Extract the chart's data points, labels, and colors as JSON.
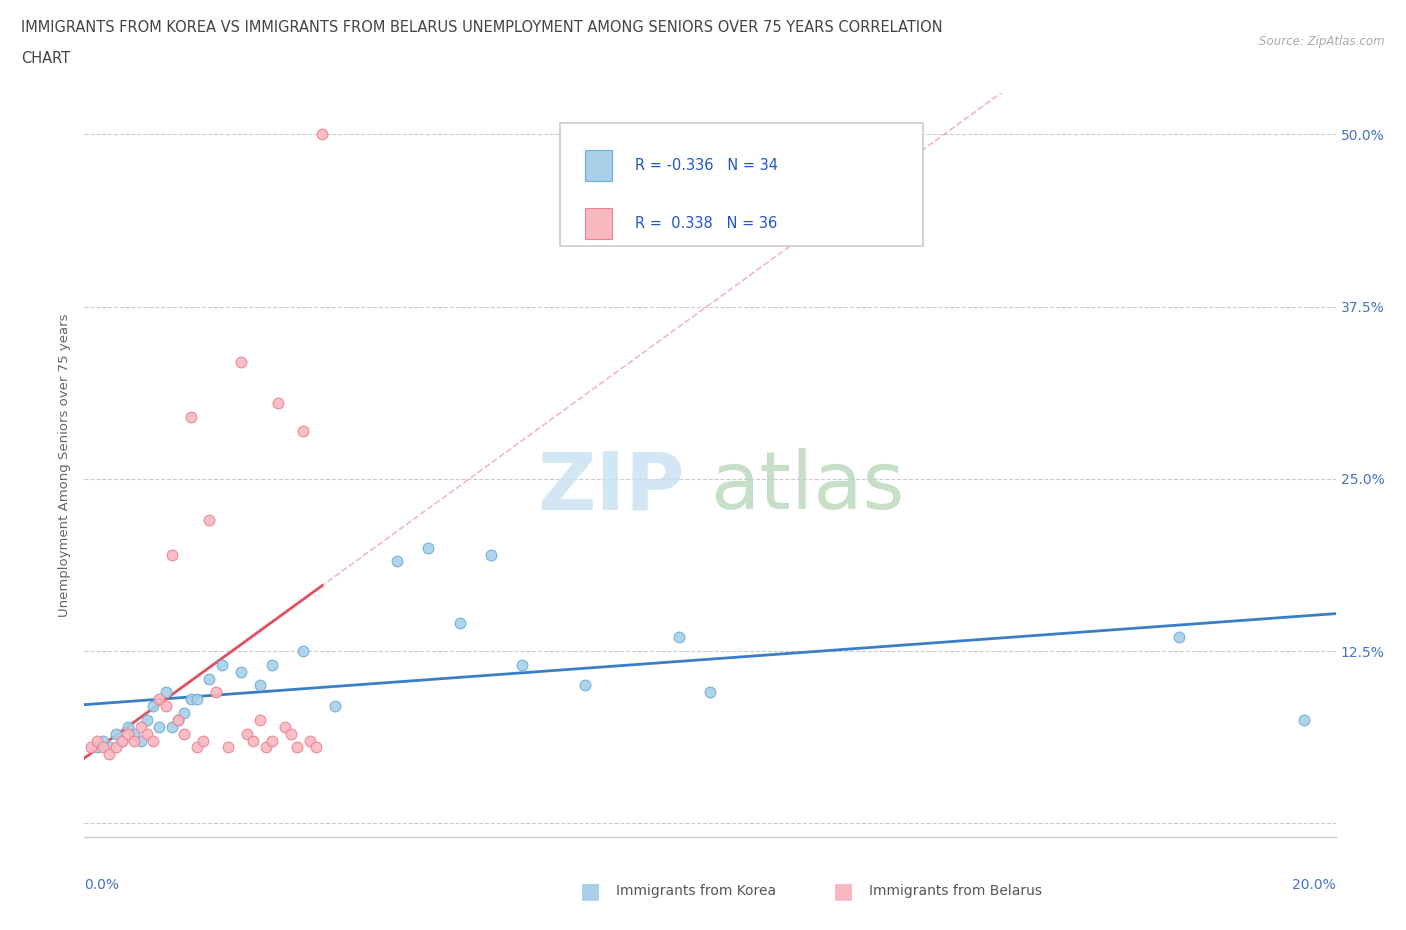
{
  "title_line1": "IMMIGRANTS FROM KOREA VS IMMIGRANTS FROM BELARUS UNEMPLOYMENT AMONG SENIORS OVER 75 YEARS CORRELATION",
  "title_line2": "CHART",
  "source": "Source: ZipAtlas.com",
  "ylabel": "Unemployment Among Seniors over 75 years",
  "yticks": [
    "",
    "12.5%",
    "25.0%",
    "37.5%",
    "50.0%"
  ],
  "ytick_vals": [
    0.0,
    12.5,
    25.0,
    37.5,
    50.0
  ],
  "xlim": [
    0.0,
    20.0
  ],
  "ylim": [
    -1.0,
    53.0
  ],
  "legend_korea_r": "-0.336",
  "legend_korea_n": "34",
  "legend_belarus_r": "0.338",
  "legend_belarus_n": "36",
  "korea_color": "#a8d0e8",
  "korea_edge_color": "#6aaed6",
  "korea_line_color": "#3a7ec8",
  "belarus_color": "#f9b8c0",
  "belarus_edge_color": "#f08090",
  "belarus_line_color": "#e05060",
  "watermark_zip_color": "#c8e0f0",
  "watermark_atlas_color": "#b8d8b8",
  "korea_scatter_x": [
    0.2,
    0.3,
    0.4,
    0.5,
    0.6,
    0.7,
    0.8,
    0.9,
    1.0,
    1.1,
    1.2,
    1.3,
    1.4,
    1.5,
    1.6,
    1.7,
    1.8,
    2.0,
    2.2,
    2.5,
    2.8,
    3.0,
    3.5,
    4.0,
    5.0,
    5.5,
    6.0,
    6.5,
    7.0,
    8.0,
    9.5,
    10.0,
    17.5,
    19.5
  ],
  "korea_scatter_y": [
    5.5,
    6.0,
    5.5,
    6.5,
    6.0,
    7.0,
    6.5,
    6.0,
    7.5,
    8.5,
    7.0,
    9.5,
    7.0,
    7.5,
    8.0,
    9.0,
    9.0,
    10.5,
    11.5,
    11.0,
    10.0,
    11.5,
    12.5,
    8.5,
    19.0,
    20.0,
    14.5,
    19.5,
    11.5,
    10.0,
    13.5,
    9.5,
    13.5,
    7.5
  ],
  "belarus_scatter_x": [
    0.1,
    0.2,
    0.3,
    0.4,
    0.5,
    0.6,
    0.7,
    0.8,
    0.9,
    1.0,
    1.1,
    1.2,
    1.3,
    1.4,
    1.5,
    1.6,
    1.7,
    1.8,
    1.9,
    2.0,
    2.1,
    2.3,
    2.5,
    2.6,
    2.7,
    2.8,
    2.9,
    3.0,
    3.1,
    3.2,
    3.3,
    3.4,
    3.5,
    3.6,
    3.7,
    3.8
  ],
  "belarus_scatter_y": [
    5.5,
    6.0,
    5.5,
    5.0,
    5.5,
    6.0,
    6.5,
    6.0,
    7.0,
    6.5,
    6.0,
    9.0,
    8.5,
    19.5,
    7.5,
    6.5,
    29.5,
    5.5,
    6.0,
    22.0,
    9.5,
    5.5,
    33.5,
    6.5,
    6.0,
    7.5,
    5.5,
    6.0,
    30.5,
    7.0,
    6.5,
    5.5,
    28.5,
    6.0,
    5.5,
    50.0
  ]
}
